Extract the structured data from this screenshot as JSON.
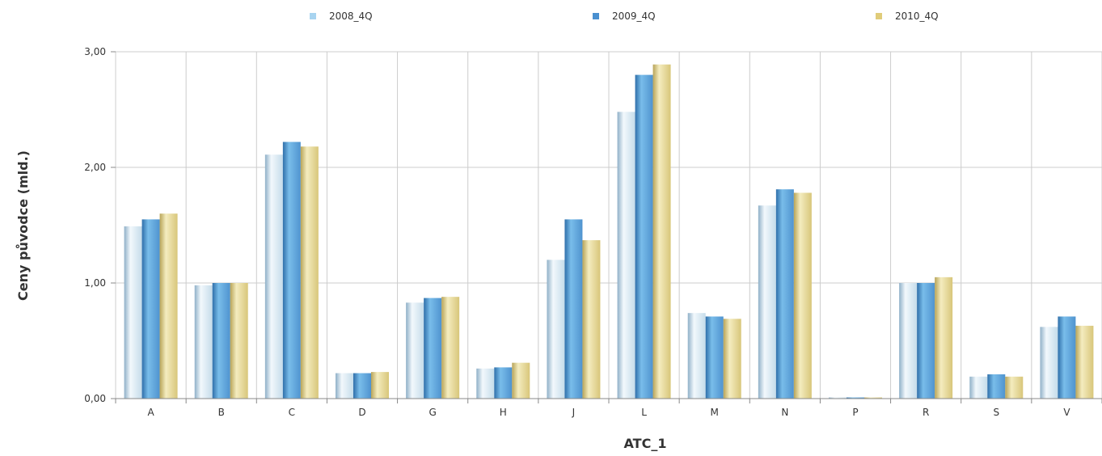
{
  "chart_data": {
    "type": "bar",
    "categories": [
      "A",
      "B",
      "C",
      "D",
      "G",
      "H",
      "J",
      "L",
      "M",
      "N",
      "P",
      "R",
      "S",
      "V"
    ],
    "series": [
      {
        "name": "2008_4Q",
        "color": "#a8d4f0",
        "values": [
          1.49,
          0.98,
          2.11,
          0.22,
          0.83,
          0.26,
          1.2,
          2.48,
          0.74,
          1.67,
          0.01,
          1.0,
          0.19,
          0.62
        ]
      },
      {
        "name": "2009_4Q",
        "color": "#4a90d0",
        "values": [
          1.55,
          1.0,
          2.22,
          0.22,
          0.87,
          0.27,
          1.55,
          2.8,
          0.71,
          1.81,
          0.01,
          1.0,
          0.21,
          0.71
        ]
      },
      {
        "name": "2010_4Q",
        "color": "#e0cc7a",
        "values": [
          1.6,
          1.0,
          2.18,
          0.23,
          0.88,
          0.31,
          1.37,
          2.89,
          0.69,
          1.78,
          0.01,
          1.05,
          0.19,
          0.63
        ]
      }
    ],
    "xlabel": "ATC_1",
    "ylabel": "Ceny původce (mld.)",
    "ylim": [
      0,
      3
    ],
    "yticks": [
      "0,00",
      "1,00",
      "2,00",
      "3,00"
    ],
    "grid": true,
    "legend_position": "top"
  }
}
